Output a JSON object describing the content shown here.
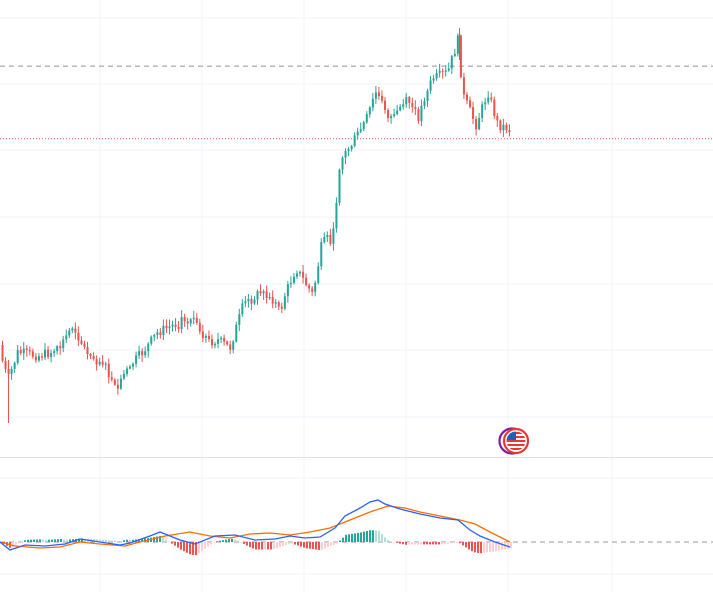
{
  "colors": {
    "up": "#26a69a",
    "down": "#ef5350",
    "grid": "#f0f3fa",
    "divider": "#e0e3eb",
    "dashed_line": "#9598a1",
    "price_line": "#ef5350",
    "macd_line": "#2962ff",
    "signal_line": "#ff6d00",
    "hist_up_strong": "#26a69a",
    "hist_up_weak": "#b2dfdb",
    "hist_down_strong": "#ef5350",
    "hist_down_weak": "#ffcdd2",
    "badge_outer": "#7b1fa2",
    "badge_inner": "#e53935"
  },
  "icons": {
    "currency_badge": "us-flag-currency-icon"
  },
  "chart_data": [
    {
      "type": "candlestick",
      "title": "",
      "grid": true,
      "reference_lines": [
        {
          "style": "dashed",
          "value": 0.905
        },
        {
          "style": "dotted",
          "value": 0.85
        }
      ],
      "y_range": [
        0.61,
        0.955
      ],
      "x_range": [
        0,
        236
      ],
      "candles_count": 168
    },
    {
      "type": "macd",
      "title": "",
      "grid": true,
      "zero_line": true,
      "series": [
        {
          "key": "macd",
          "points": [
            [
              0,
              0.0
            ],
            [
              10,
              -8
            ],
            [
              25,
              -3
            ],
            [
              45,
              -4
            ],
            [
              65,
              -2
            ],
            [
              80,
              3
            ],
            [
              100,
              0
            ],
            [
              120,
              -3
            ],
            [
              130,
              -1
            ],
            [
              150,
              6
            ],
            [
              160,
              10
            ],
            [
              180,
              2
            ],
            [
              195,
              -2
            ],
            [
              215,
              6
            ],
            [
              235,
              7
            ],
            [
              255,
              2
            ],
            [
              275,
              3
            ],
            [
              290,
              6
            ],
            [
              305,
              4
            ],
            [
              320,
              5
            ],
            [
              335,
              14
            ],
            [
              345,
              26
            ],
            [
              360,
              34
            ],
            [
              370,
              40
            ],
            [
              378,
              42
            ],
            [
              385,
              38
            ],
            [
              400,
              33
            ],
            [
              420,
              28
            ],
            [
              440,
              24
            ],
            [
              458,
              22
            ],
            [
              470,
              12
            ],
            [
              480,
              6
            ],
            [
              495,
              0
            ],
            [
              510,
              -5
            ]
          ]
        },
        {
          "key": "signal",
          "points": [
            [
              0,
              0.0
            ],
            [
              15,
              -4
            ],
            [
              40,
              -6
            ],
            [
              60,
              -5
            ],
            [
              80,
              0
            ],
            [
              100,
              -2
            ],
            [
              125,
              -4
            ],
            [
              140,
              0
            ],
            [
              165,
              6
            ],
            [
              190,
              10
            ],
            [
              210,
              6
            ],
            [
              230,
              4
            ],
            [
              250,
              8
            ],
            [
              270,
              9
            ],
            [
              290,
              7
            ],
            [
              310,
              10
            ],
            [
              330,
              14
            ],
            [
              350,
              22
            ],
            [
              370,
              30
            ],
            [
              388,
              36
            ],
            [
              405,
              34
            ],
            [
              420,
              30
            ],
            [
              440,
              26
            ],
            [
              460,
              22
            ],
            [
              475,
              18
            ],
            [
              490,
              10
            ],
            [
              510,
              0
            ]
          ]
        }
      ]
    }
  ]
}
